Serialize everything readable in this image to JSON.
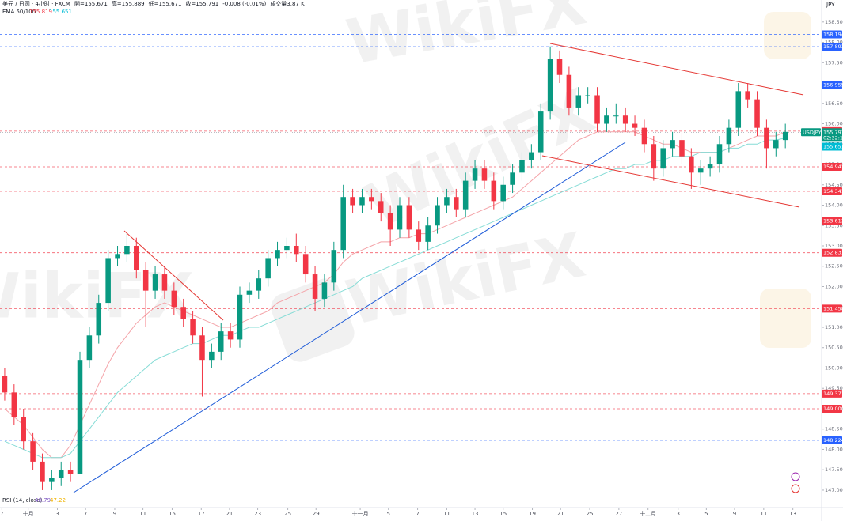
{
  "chart_data": {
    "type": "candlestick",
    "title": "美元 / 日圆 · 4小时 · FXCM",
    "ohlc_legend": [
      "開=155.671",
      "高=155.889",
      "低=155.671",
      "收=155.791",
      "-0.008 (-0.01%)",
      "成交量3.87 K"
    ],
    "ema_legend": {
      "name": "EMA 50/100",
      "values": [
        "155.819",
        "155.651"
      ]
    },
    "rsi_legend": {
      "name": "RSI (14, close)",
      "values": [
        "48.79",
        "47.22"
      ]
    },
    "currency": "JPY",
    "symbol": "USDJPY",
    "countdown": "02:32:17",
    "watermark": "WikiFX",
    "up_color": "#089981",
    "down_color": "#f23645",
    "xlim": [
      -0.5,
      84.5
    ],
    "xticks": [
      {
        "value": -0.3,
        "label": "7"
      },
      {
        "value": 2.5,
        "label": "十月"
      },
      {
        "value": 5.6,
        "label": "3"
      },
      {
        "value": 8.6,
        "label": "7"
      },
      {
        "value": 11.7,
        "label": "9"
      },
      {
        "value": 14.7,
        "label": "11"
      },
      {
        "value": 17.8,
        "label": "15"
      },
      {
        "value": 20.9,
        "label": "17"
      },
      {
        "value": 23.9,
        "label": "21"
      },
      {
        "value": 26.9,
        "label": "23"
      },
      {
        "value": 30.1,
        "label": "25"
      },
      {
        "value": 33.1,
        "label": "29"
      },
      {
        "value": 37.8,
        "label": "十一月"
      },
      {
        "value": 40.8,
        "label": "5"
      },
      {
        "value": 43.9,
        "label": "7"
      },
      {
        "value": 47.0,
        "label": "11"
      },
      {
        "value": 50.0,
        "label": "13"
      },
      {
        "value": 53.0,
        "label": "15"
      },
      {
        "value": 56.1,
        "label": "19"
      },
      {
        "value": 59.1,
        "label": "21"
      },
      {
        "value": 62.2,
        "label": "25"
      },
      {
        "value": 65.3,
        "label": "27"
      },
      {
        "value": 68.4,
        "label": "十二月"
      },
      {
        "value": 71.6,
        "label": "3"
      },
      {
        "value": 74.6,
        "label": "5"
      },
      {
        "value": 77.6,
        "label": "9"
      },
      {
        "value": 80.7,
        "label": "11"
      },
      {
        "value": 83.8,
        "label": "13"
      }
    ],
    "ylim": [
      146.63,
      159.04
    ],
    "yticks": [
      {
        "value": 147,
        "label": "147.000"
      },
      {
        "value": 147.5,
        "label": "147.500"
      },
      {
        "value": 148,
        "label": "148.000"
      },
      {
        "value": 148.5,
        "label": "148.500"
      },
      {
        "value": 149,
        "label": "149.000"
      },
      {
        "value": 149.5,
        "label": "149.500"
      },
      {
        "value": 150,
        "label": "150.000"
      },
      {
        "value": 150.5,
        "label": "150.500"
      },
      {
        "value": 151,
        "label": "151.000"
      },
      {
        "value": 151.5,
        "label": "151.500"
      },
      {
        "value": 152,
        "label": "152.000"
      },
      {
        "value": 152.5,
        "label": "152.500"
      },
      {
        "value": 153,
        "label": "153.000"
      },
      {
        "value": 153.5,
        "label": "153.500"
      },
      {
        "value": 154,
        "label": "154.000"
      },
      {
        "value": 154.5,
        "label": "154.500"
      },
      {
        "value": 155,
        "label": "155.000"
      },
      {
        "value": 155.5,
        "label": "155.500"
      },
      {
        "value": 156,
        "label": "156.000"
      },
      {
        "value": 156.5,
        "label": "156.500"
      },
      {
        "value": 157,
        "label": "157.000"
      },
      {
        "value": 157.5,
        "label": "157.500"
      },
      {
        "value": 158,
        "label": "158.000"
      },
      {
        "value": 158.5,
        "label": "158.500"
      }
    ],
    "levels": [
      {
        "price": 158.194,
        "color": "#2962ff"
      },
      {
        "price": 157.893,
        "color": "#2962ff"
      },
      {
        "price": 156.955,
        "color": "#2962ff"
      },
      {
        "price": 155.819,
        "color": "#f23645"
      },
      {
        "price": 154.942,
        "color": "#f23645"
      },
      {
        "price": 154.341,
        "color": "#f23645"
      },
      {
        "price": 153.613,
        "color": "#f23645"
      },
      {
        "price": 152.831,
        "color": "#f23645"
      },
      {
        "price": 151.458,
        "color": "#f23645"
      },
      {
        "price": 149.371,
        "color": "#f23645"
      },
      {
        "price": {
          "value": 149,
          "label": "149.000"
        },
        "color": "#f23645"
      },
      {
        "price": 148.224,
        "color": "#2962ff"
      }
    ],
    "last_price": 155.791,
    "last_color": "#089981",
    "ema100_price": 155.651,
    "ema100_color": "#00bcd4",
    "candles": {
      "open": [
        149.8,
        149.4,
        148.8,
        148.2,
        147.7,
        147.2,
        147.3,
        147.5,
        147.4,
        150.2,
        150.8,
        151.6,
        152.7,
        152.8,
        153.0,
        152.4,
        151.9,
        152.3,
        151.9,
        151.5,
        151.2,
        150.8,
        150.2,
        150.4,
        150.9,
        150.7,
        151.8,
        151.9,
        152.2,
        152.7,
        152.9,
        153.0,
        152.8,
        152.3,
        151.7,
        152.1,
        152.9,
        154.2,
        154.0,
        154.2,
        154.1,
        153.8,
        153.4,
        154.0,
        153.4,
        153.1,
        153.5,
        154.0,
        154.2,
        153.9,
        154.6,
        154.9,
        154.6,
        154.1,
        154.5,
        154.8,
        155.1,
        155.3,
        156.3,
        157.6,
        157.2,
        156.4,
        156.7,
        156.7,
        156.0,
        156.2,
        156.2,
        156.0,
        155.9,
        155.5,
        154.9,
        155.4,
        155.6,
        155.2,
        154.8,
        154.9,
        155.0,
        155.5,
        155.9,
        156.8,
        156.6,
        155.9,
        155.4,
        155.6
      ],
      "high": [
        150.0,
        149.6,
        149.0,
        148.4,
        147.9,
        147.5,
        147.7,
        147.7,
        150.4,
        151.0,
        151.8,
        152.9,
        153.0,
        153.3,
        153.2,
        152.6,
        152.5,
        152.5,
        152.1,
        151.7,
        151.4,
        151.0,
        150.6,
        151.1,
        151.1,
        152.0,
        152.1,
        152.4,
        152.9,
        153.1,
        153.2,
        153.3,
        153.0,
        152.5,
        152.3,
        153.1,
        154.5,
        154.4,
        154.4,
        154.4,
        154.3,
        154.0,
        154.2,
        154.2,
        153.6,
        153.7,
        154.2,
        154.4,
        154.4,
        154.8,
        155.1,
        155.1,
        154.8,
        154.7,
        155.0,
        155.3,
        155.5,
        156.5,
        157.9,
        157.8,
        157.4,
        156.9,
        156.9,
        156.9,
        156.4,
        156.5,
        156.4,
        156.2,
        156.1,
        155.7,
        155.6,
        155.8,
        155.8,
        155.4,
        155.1,
        155.2,
        155.7,
        156.1,
        157.0,
        157.0,
        156.8,
        156.1,
        155.8,
        156.0
      ],
      "low": [
        149.2,
        148.6,
        148.0,
        147.5,
        147.0,
        147.0,
        147.1,
        147.2,
        149.0,
        150.0,
        150.6,
        151.4,
        152.5,
        152.6,
        152.2,
        151.0,
        151.7,
        151.7,
        151.3,
        151.0,
        150.6,
        149.3,
        150.0,
        150.2,
        150.5,
        150.5,
        151.6,
        151.7,
        152.0,
        152.5,
        152.7,
        152.6,
        152.1,
        151.4,
        151.5,
        151.9,
        152.7,
        153.8,
        153.8,
        153.9,
        153.6,
        153.0,
        153.2,
        153.2,
        152.9,
        152.9,
        153.3,
        153.8,
        153.7,
        153.7,
        154.4,
        154.4,
        153.9,
        153.9,
        154.3,
        154.6,
        154.9,
        155.1,
        156.1,
        157.0,
        156.2,
        156.2,
        156.5,
        155.8,
        155.8,
        156.0,
        155.8,
        155.7,
        155.3,
        154.6,
        154.7,
        155.2,
        155.0,
        154.4,
        154.5,
        154.7,
        154.8,
        155.3,
        155.7,
        156.4,
        155.7,
        154.9,
        155.2,
        155.4
      ],
      "close": [
        149.4,
        148.8,
        148.2,
        147.7,
        147.2,
        147.3,
        147.5,
        147.4,
        150.2,
        150.8,
        151.6,
        152.7,
        152.8,
        153.0,
        152.4,
        151.9,
        152.3,
        151.9,
        151.5,
        151.2,
        150.8,
        150.2,
        150.4,
        150.9,
        150.7,
        151.8,
        151.9,
        152.2,
        152.7,
        152.9,
        153.0,
        152.8,
        152.3,
        151.7,
        152.1,
        152.9,
        154.2,
        154.0,
        154.2,
        154.1,
        153.8,
        153.4,
        154.0,
        153.4,
        153.1,
        153.5,
        154.0,
        154.2,
        153.9,
        154.6,
        154.9,
        154.6,
        154.1,
        154.5,
        154.8,
        155.1,
        155.3,
        156.3,
        157.6,
        157.2,
        156.4,
        156.7,
        156.7,
        156.0,
        156.2,
        156.2,
        156.0,
        155.9,
        155.5,
        154.9,
        155.4,
        155.6,
        155.2,
        154.8,
        154.9,
        155.0,
        155.5,
        155.9,
        156.8,
        156.6,
        155.9,
        155.4,
        155.6,
        155.8
      ]
    },
    "series": [
      {
        "name": "EMA 50",
        "color": "#f4a3a8",
        "values": [
          149.0,
          148.8,
          148.6,
          148.3,
          148.0,
          147.8,
          147.8,
          148.1,
          148.6,
          149.1,
          149.6,
          150.1,
          150.5,
          150.8,
          151.1,
          151.3,
          151.5,
          151.6,
          151.5,
          151.4,
          151.3,
          151.2,
          151.1,
          151.0,
          151.0,
          151.1,
          151.2,
          151.3,
          151.4,
          151.6,
          151.7,
          151.8,
          151.9,
          152.0,
          152.1,
          152.3,
          152.6,
          152.8,
          152.9,
          153.0,
          153.1,
          153.1,
          153.2,
          153.2,
          153.3,
          153.3,
          153.4,
          153.5,
          153.6,
          153.7,
          153.8,
          153.9,
          154.0,
          154.1,
          154.2,
          154.4,
          154.6,
          154.8,
          155.0,
          155.2,
          155.4,
          155.6,
          155.7,
          155.8,
          155.8,
          155.8,
          155.8,
          155.8,
          155.7,
          155.6,
          155.5,
          155.5,
          155.4,
          155.3,
          155.3,
          155.3,
          155.3,
          155.4,
          155.5,
          155.6,
          155.7,
          155.7,
          155.7,
          155.8
        ]
      },
      {
        "name": "EMA 100",
        "color": "#86dcd6",
        "values": [
          148.2,
          148.1,
          148.0,
          147.9,
          147.8,
          147.8,
          147.8,
          147.9,
          148.2,
          148.5,
          148.8,
          149.1,
          149.4,
          149.6,
          149.8,
          150.0,
          150.2,
          150.3,
          150.4,
          150.5,
          150.6,
          150.6,
          150.7,
          150.8,
          150.8,
          150.9,
          151.0,
          151.0,
          151.1,
          151.2,
          151.3,
          151.4,
          151.5,
          151.6,
          151.7,
          151.8,
          151.9,
          152.0,
          152.2,
          152.3,
          152.4,
          152.5,
          152.6,
          152.7,
          152.8,
          152.9,
          153.0,
          153.1,
          153.2,
          153.3,
          153.4,
          153.5,
          153.6,
          153.7,
          153.8,
          153.9,
          154.0,
          154.1,
          154.2,
          154.3,
          154.4,
          154.5,
          154.6,
          154.7,
          154.8,
          154.9,
          154.9,
          155.0,
          155.0,
          155.1,
          155.1,
          155.2,
          155.2,
          155.2,
          155.3,
          155.3,
          155.3,
          155.4,
          155.4,
          155.5,
          155.5,
          155.6,
          155.6,
          155.65
        ]
      }
    ]
  }
}
